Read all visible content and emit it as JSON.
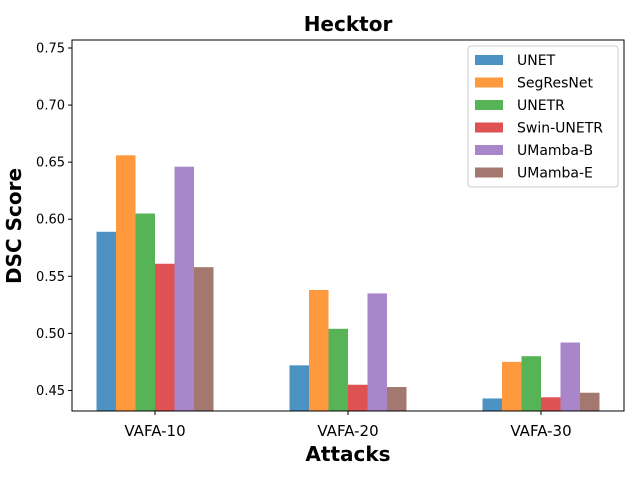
{
  "chart_data": {
    "type": "bar",
    "title": "Hecktor",
    "xlabel": "Attacks",
    "ylabel": "DSC Score",
    "categories": [
      "VAFA-10",
      "VAFA-20",
      "VAFA-30"
    ],
    "ylim": [
      0.432,
      0.757
    ],
    "yticks": [
      "0.45",
      "0.50",
      "0.55",
      "0.60",
      "0.65",
      "0.70",
      "0.75"
    ],
    "ytick_values": [
      0.45,
      0.5,
      0.55,
      0.6,
      0.65,
      0.7,
      0.75
    ],
    "legend_position": "top-right",
    "grid": false,
    "series": [
      {
        "name": "UNET",
        "color": "#1f77b4",
        "values": [
          0.589,
          0.472,
          0.443
        ]
      },
      {
        "name": "SegResNet",
        "color": "#ff7f0e",
        "values": [
          0.656,
          0.538,
          0.475
        ]
      },
      {
        "name": "UNETR",
        "color": "#2ca02c",
        "values": [
          0.605,
          0.504,
          0.48
        ]
      },
      {
        "name": "Swin-UNETR",
        "color": "#d62728",
        "values": [
          0.561,
          0.455,
          0.444
        ]
      },
      {
        "name": "UMamba-B",
        "color": "#9467bd",
        "values": [
          0.646,
          0.535,
          0.492
        ]
      },
      {
        "name": "UMamba-E",
        "color": "#8c564b",
        "values": [
          0.558,
          0.453,
          0.448
        ]
      }
    ]
  }
}
